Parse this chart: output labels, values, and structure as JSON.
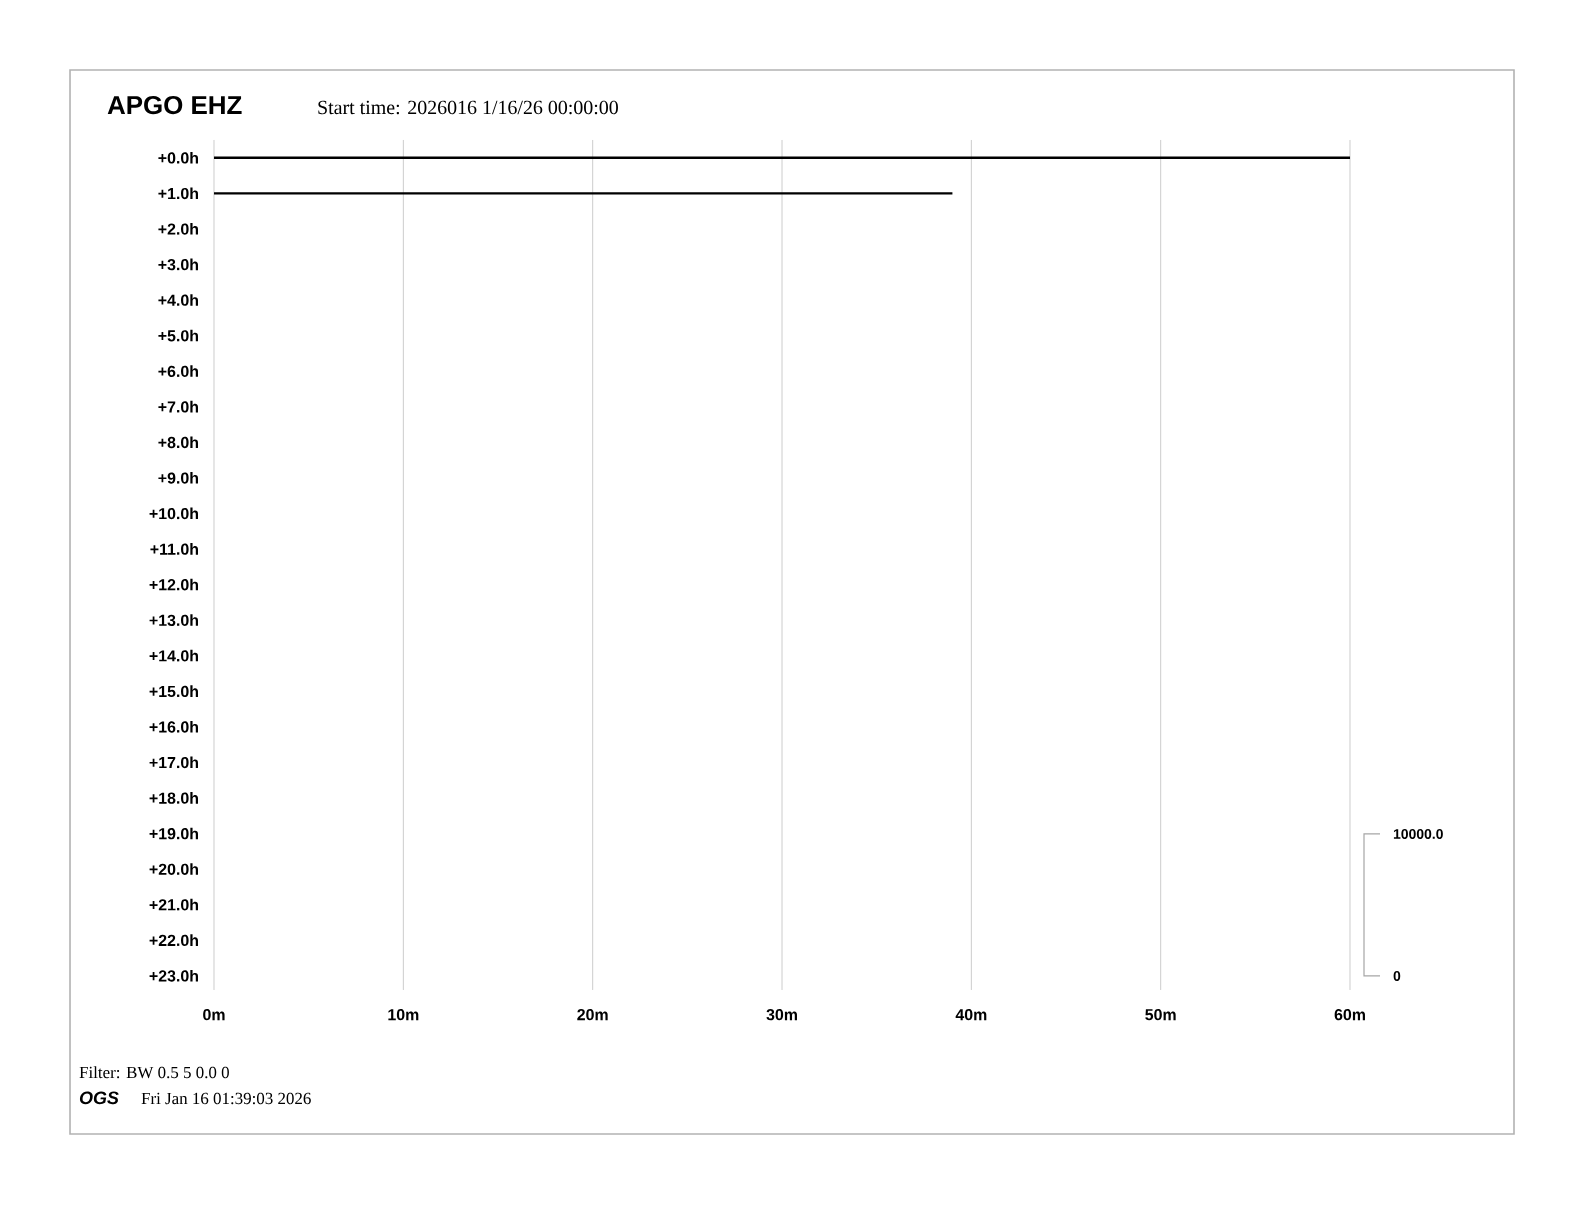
{
  "chart_data": {
    "type": "line",
    "title": "APGO EHZ",
    "subtitle": "Start time: 2026016  1/16/26 00:00:00",
    "xlim": [
      0,
      60
    ],
    "ylim": [
      23.4,
      -0.5
    ],
    "xticks": [
      {
        "value": 0,
        "label": "0m"
      },
      {
        "value": 10,
        "label": "10m"
      },
      {
        "value": 20,
        "label": "20m"
      },
      {
        "value": 30,
        "label": "30m"
      },
      {
        "value": 40,
        "label": "40m"
      },
      {
        "value": 50,
        "label": "50m"
      },
      {
        "value": 60,
        "label": "60m"
      }
    ],
    "yticks": [
      {
        "value": 0,
        "label": "+0.0h"
      },
      {
        "value": 1,
        "label": "+1.0h"
      },
      {
        "value": 2,
        "label": "+2.0h"
      },
      {
        "value": 3,
        "label": "+3.0h"
      },
      {
        "value": 4,
        "label": "+4.0h"
      },
      {
        "value": 5,
        "label": "+5.0h"
      },
      {
        "value": 6,
        "label": "+6.0h"
      },
      {
        "value": 7,
        "label": "+7.0h"
      },
      {
        "value": 8,
        "label": "+8.0h"
      },
      {
        "value": 9,
        "label": "+9.0h"
      },
      {
        "value": 10,
        "label": "+10.0h"
      },
      {
        "value": 11,
        "label": "+11.0h"
      },
      {
        "value": 12,
        "label": "+12.0h"
      },
      {
        "value": 13,
        "label": "+13.0h"
      },
      {
        "value": 14,
        "label": "+14.0h"
      },
      {
        "value": 15,
        "label": "+15.0h"
      },
      {
        "value": 16,
        "label": "+16.0h"
      },
      {
        "value": 17,
        "label": "+17.0h"
      },
      {
        "value": 18,
        "label": "+18.0h"
      },
      {
        "value": 19,
        "label": "+19.0h"
      },
      {
        "value": 20,
        "label": "+20.0h"
      },
      {
        "value": 21,
        "label": "+21.0h"
      },
      {
        "value": 22,
        "label": "+22.0h"
      },
      {
        "value": 23,
        "label": "+23.0h"
      }
    ],
    "grid": "x",
    "series": [
      {
        "color": "#000000",
        "x": [
          0,
          60
        ],
        "values": [
          0,
          0
        ]
      },
      {
        "color": "#000000",
        "x": [
          0,
          39
        ],
        "values": [
          1,
          1
        ]
      }
    ],
    "annotations": [
      "10000.0",
      "0",
      "Filter: BW 0.5 5 0.0 0",
      "OGS",
      "Fri Jan 16 01:39:03 2026"
    ]
  }
}
